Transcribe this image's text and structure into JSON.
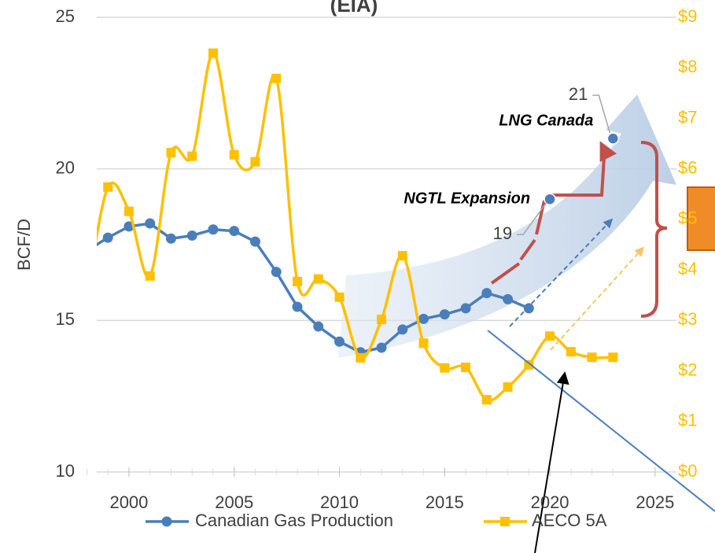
{
  "chart_data": {
    "type": "line",
    "title": "(EIA)",
    "y_label": "BCF/D",
    "x": [
      1998,
      1999,
      2000,
      2001,
      2002,
      2003,
      2004,
      2005,
      2006,
      2007,
      2008,
      2009,
      2010,
      2011,
      2012,
      2013,
      2014,
      2015,
      2016,
      2017,
      2018,
      2019,
      2020,
      2021,
      2022,
      2023
    ],
    "series": [
      {
        "name": "Canadian Gas Production",
        "color": "#4a7ebb",
        "marker": "circle",
        "smooth": false,
        "values": [
          17.3,
          17.73,
          18.1,
          18.2,
          17.7,
          17.8,
          18.0,
          17.95,
          17.6,
          16.6,
          15.45,
          14.8,
          14.3,
          13.95,
          14.1,
          14.7,
          15.05,
          15.2,
          15.4,
          15.9,
          15.7,
          15.4,
          null,
          null,
          null,
          null
        ]
      },
      {
        "name": "AECO 5A",
        "color": "#ffc000",
        "marker": "square",
        "smooth": true,
        "axis": "y2",
        "values": [
          3.5,
          5.64,
          5.16,
          3.88,
          6.32,
          6.25,
          8.29,
          6.28,
          6.14,
          7.79,
          3.77,
          3.82,
          3.46,
          2.26,
          3.02,
          4.28,
          2.55,
          2.06,
          2.07,
          1.43,
          1.68,
          2.12,
          2.69,
          2.38,
          2.27,
          2.27
        ]
      }
    ],
    "annotations": [
      {
        "text": "NGTL Expansion",
        "x": 2020,
        "y": 19
      },
      {
        "text": "LNG Canada",
        "x": 2023,
        "y": 21
      }
    ],
    "xlim": [
      1998.47,
      2026.5
    ],
    "xticks": [
      2000,
      2005,
      2010,
      2015,
      2020,
      2025
    ],
    "ylim": [
      10,
      25
    ],
    "yticks": [
      10,
      15,
      20,
      25
    ],
    "y2lim": [
      0,
      9
    ],
    "y2ticks": [
      {
        "value": 0,
        "label": "$0"
      },
      {
        "value": 1,
        "label": "$1"
      },
      {
        "value": 2,
        "label": "$2"
      },
      {
        "value": 3,
        "label": "$3"
      },
      {
        "value": 4,
        "label": "$4"
      },
      {
        "value": 5,
        "label": "$5"
      },
      {
        "value": 6,
        "label": "$6"
      },
      {
        "value": 7,
        "label": "$7"
      },
      {
        "value": 8,
        "label": "$8"
      },
      {
        "value": 9,
        "label": "$9"
      }
    ],
    "grid": true,
    "legend": "bottom"
  }
}
